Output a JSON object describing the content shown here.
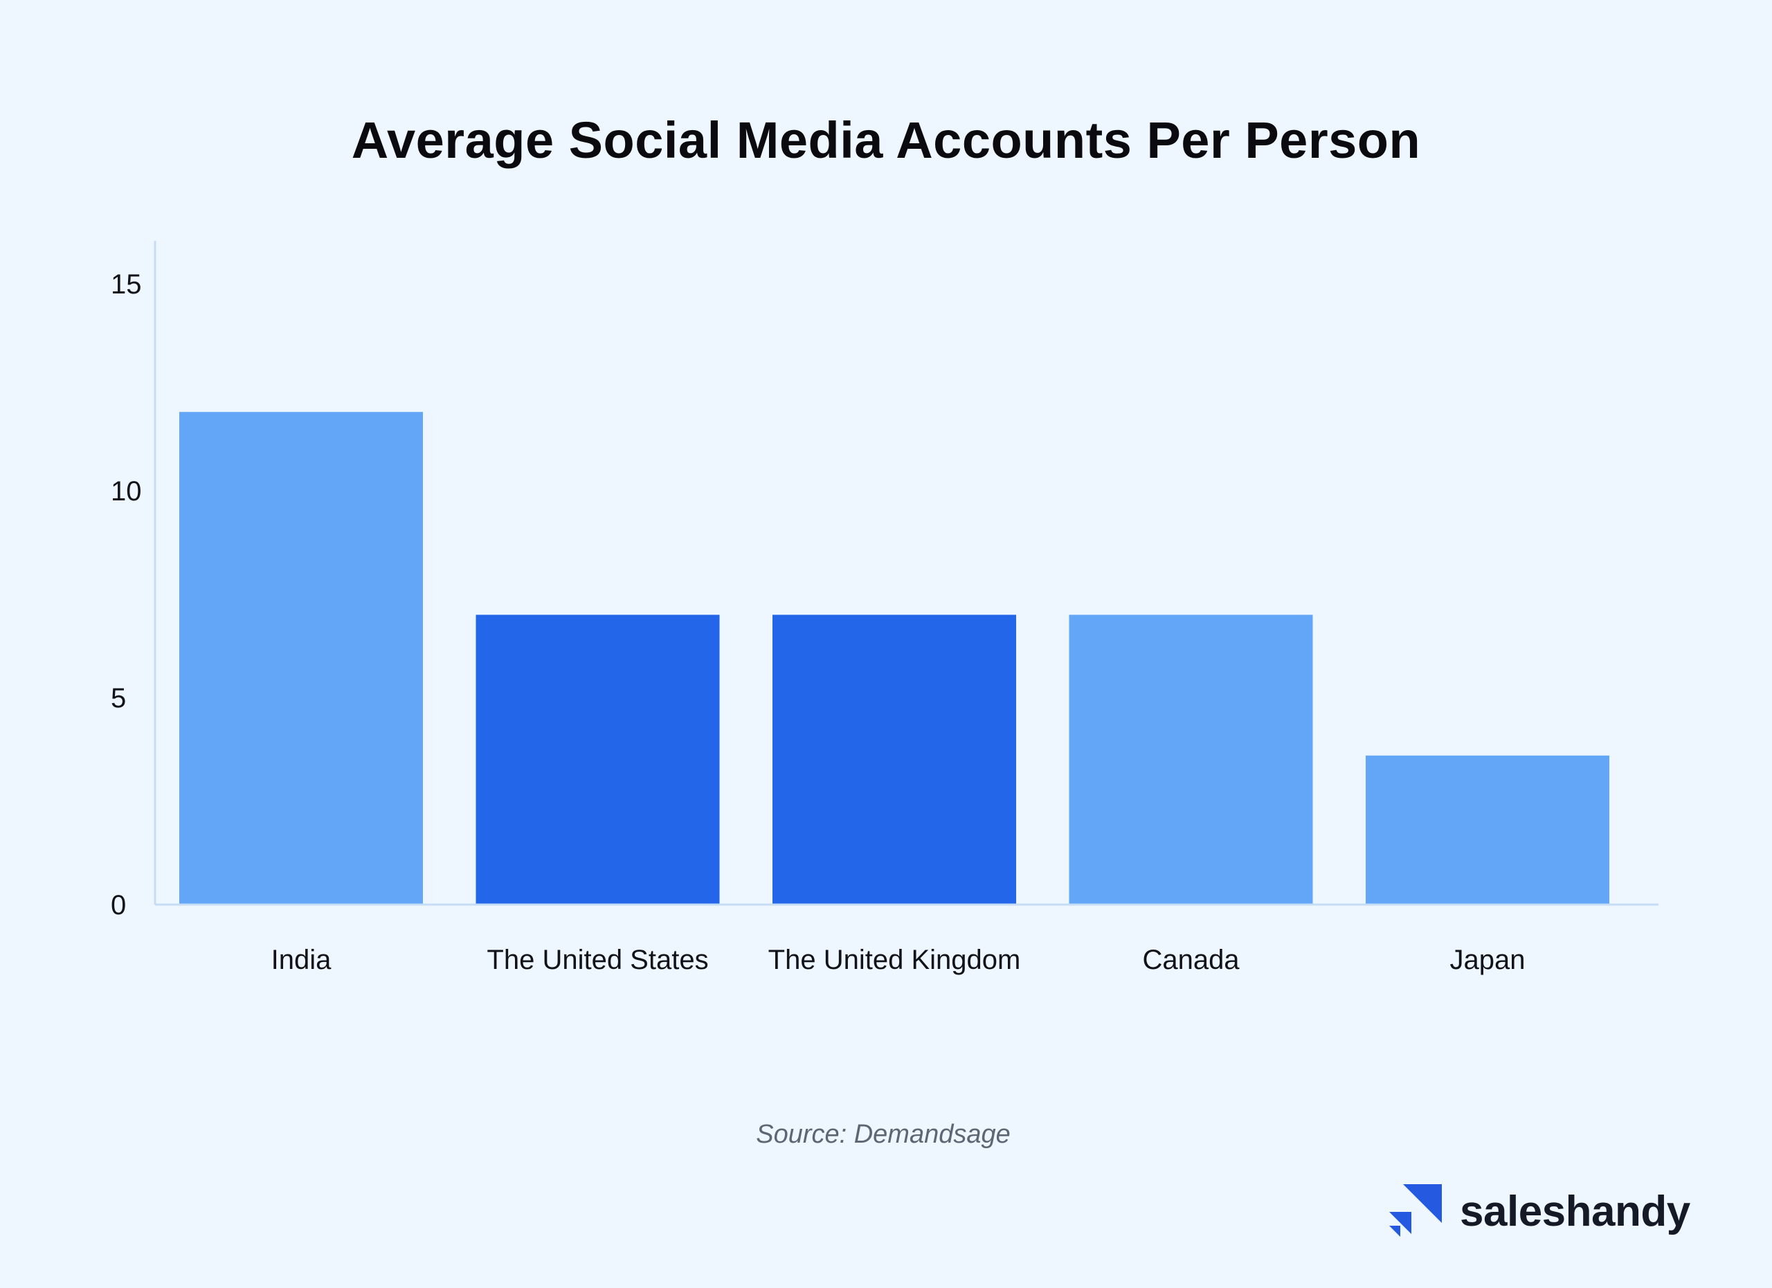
{
  "chart_data": {
    "type": "bar",
    "title": "Average Social Media Accounts Per Person",
    "categories": [
      "India",
      "The United States",
      "The United Kingdom",
      "Canada",
      "Japan"
    ],
    "values": [
      11.9,
      7.0,
      7.0,
      7.0,
      3.6
    ],
    "bar_colors": [
      "#63a5f7",
      "#2466e9",
      "#2466e9",
      "#63a5f7",
      "#63a5f7"
    ],
    "ylim": [
      0,
      16
    ],
    "yticks": [
      0,
      5,
      10,
      15
    ],
    "xlabel": "",
    "ylabel": "",
    "grid": false
  },
  "source": "Source: Demandsage",
  "brand": {
    "name": "saleshandy",
    "logo_icon": "saleshandy-logo-icon",
    "color": "#2459e0"
  }
}
